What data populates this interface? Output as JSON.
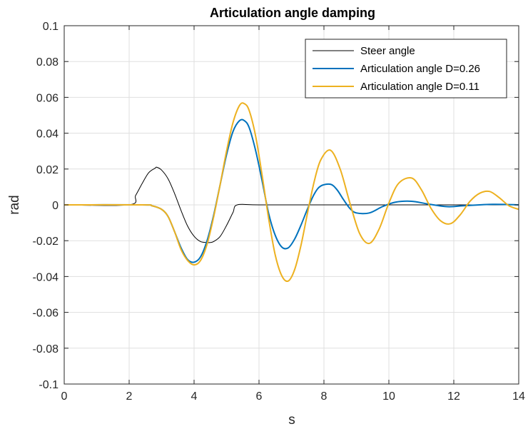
{
  "chart_data": {
    "type": "line",
    "title": "Articulation angle damping",
    "xlabel": "s",
    "ylabel": "rad",
    "xlim": [
      0,
      14
    ],
    "ylim": [
      -0.1,
      0.1
    ],
    "x_ticks": [
      "0",
      "2",
      "4",
      "6",
      "8",
      "10",
      "12",
      "14"
    ],
    "y_ticks": [
      "-0.1",
      "-0.08",
      "-0.06",
      "-0.04",
      "-0.02",
      "0",
      "0.02",
      "0.04",
      "0.06",
      "0.08",
      "0.1"
    ],
    "grid": true,
    "legend_position": "top-right",
    "series": [
      {
        "name": "Steer angle",
        "color": "#000000",
        "x": [
          0,
          2.0,
          2.2,
          2.4,
          2.6,
          2.8,
          2.85,
          3.0,
          3.2,
          3.4,
          3.6,
          3.8,
          4.0,
          4.2,
          4.4,
          4.5,
          4.6,
          4.8,
          5.0,
          5.2,
          5.33,
          6,
          8,
          10,
          12,
          14
        ],
        "y": [
          0,
          0,
          0.0053,
          0.0119,
          0.0179,
          0.0205,
          0.021,
          0.0194,
          0.0145,
          0.0063,
          -0.0032,
          -0.0118,
          -0.0175,
          -0.0205,
          -0.021,
          -0.021,
          -0.0205,
          -0.0177,
          -0.0115,
          -0.0042,
          0,
          0,
          0,
          0,
          0,
          0
        ]
      },
      {
        "name": "Articulation angle D=0.26",
        "color": "#0072BD",
        "x": [
          0,
          2.4,
          2.7,
          3.0,
          3.2,
          3.4,
          3.6,
          3.8,
          4.0,
          4.2,
          4.4,
          4.6,
          4.8,
          5.0,
          5.2,
          5.4,
          5.55,
          5.7,
          5.9,
          6.1,
          6.3,
          6.5,
          6.7,
          6.9,
          7.1,
          7.3,
          7.5,
          7.7,
          7.9,
          8.2,
          8.4,
          8.6,
          8.8,
          9.0,
          9.4,
          9.8,
          10.2,
          10.7,
          11.2,
          11.8,
          12.3,
          13.2,
          14
        ],
        "y": [
          0,
          0,
          -0.0005,
          -0.0025,
          -0.0065,
          -0.015,
          -0.024,
          -0.0305,
          -0.032,
          -0.029,
          -0.02,
          -0.006,
          0.011,
          0.028,
          0.041,
          0.047,
          0.047,
          0.043,
          0.03,
          0.013,
          -0.005,
          -0.017,
          -0.0235,
          -0.024,
          -0.019,
          -0.011,
          -0.002,
          0.006,
          0.0105,
          0.0115,
          0.0085,
          0.003,
          -0.002,
          -0.0045,
          -0.0045,
          -0.001,
          0.0015,
          0.002,
          0.0005,
          -0.001,
          -0.0005,
          0.0003,
          0
        ]
      },
      {
        "name": "Articulation angle D=0.11",
        "color": "#EDB120",
        "x": [
          0,
          2.4,
          2.7,
          3.0,
          3.2,
          3.4,
          3.6,
          3.8,
          4.0,
          4.2,
          4.4,
          4.6,
          4.8,
          5.0,
          5.2,
          5.4,
          5.55,
          5.7,
          5.9,
          6.1,
          6.3,
          6.5,
          6.7,
          6.9,
          7.1,
          7.3,
          7.5,
          7.7,
          7.9,
          8.2,
          8.5,
          8.8,
          9.1,
          9.4,
          9.7,
          10.0,
          10.3,
          10.7,
          11.0,
          11.3,
          11.6,
          11.9,
          12.2,
          12.5,
          12.8,
          13.1,
          13.4,
          13.7,
          14
        ],
        "y": [
          0,
          0,
          -0.0005,
          -0.0025,
          -0.0065,
          -0.015,
          -0.025,
          -0.031,
          -0.0335,
          -0.031,
          -0.022,
          -0.007,
          0.011,
          0.03,
          0.046,
          0.0555,
          0.0565,
          0.0525,
          0.038,
          0.016,
          -0.008,
          -0.028,
          -0.0395,
          -0.0425,
          -0.036,
          -0.022,
          -0.004,
          0.013,
          0.025,
          0.0305,
          0.02,
          0.001,
          -0.016,
          -0.0215,
          -0.0135,
          0.001,
          0.012,
          0.015,
          0.0085,
          -0.002,
          -0.009,
          -0.0105,
          -0.0055,
          0.002,
          0.0065,
          0.0075,
          0.004,
          -0.0005,
          -0.0025
        ]
      }
    ]
  }
}
